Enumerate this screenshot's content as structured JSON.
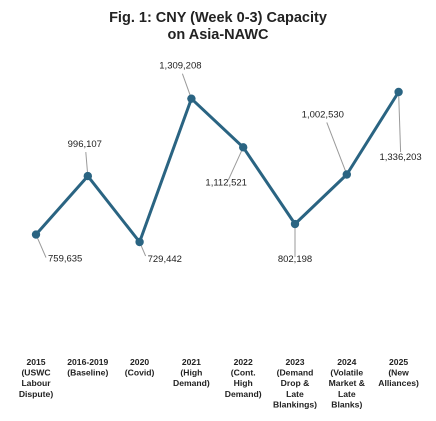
{
  "chart_data": {
    "type": "line",
    "title_lines": [
      "Fig. 1: CNY (Week 0-3) Capacity",
      "on Asia-NAWC"
    ],
    "categories": [
      [
        "2015",
        "(USWC",
        "Labour",
        "Dispute)"
      ],
      [
        "2016-2019",
        "(Baseline)"
      ],
      [
        "2020",
        "(Covid)"
      ],
      [
        "2021",
        "(High",
        "Demand)"
      ],
      [
        "2022",
        "(Cont.",
        "High",
        "Demand)"
      ],
      [
        "2023",
        "(Demand",
        "Drop &",
        "Late",
        "Blankings)"
      ],
      [
        "2024",
        "(Volatile",
        "Market &",
        "Late",
        "Blanks)"
      ],
      [
        "2025",
        "(New",
        "Alliances)"
      ]
    ],
    "values": [
      759635,
      996107,
      729442,
      1309208,
      1112521,
      802198,
      1002530,
      1336203
    ],
    "data_labels": [
      "759,635",
      "996,107",
      "729,442",
      "1,309,208",
      "1,112,521",
      "802,198",
      "1,002,530",
      "1,336,203"
    ],
    "ylim": [
      550000,
      1420000
    ],
    "line_color": "#2a6482",
    "leader_color": "#9a9a9a",
    "grid": false,
    "legend": "none"
  }
}
